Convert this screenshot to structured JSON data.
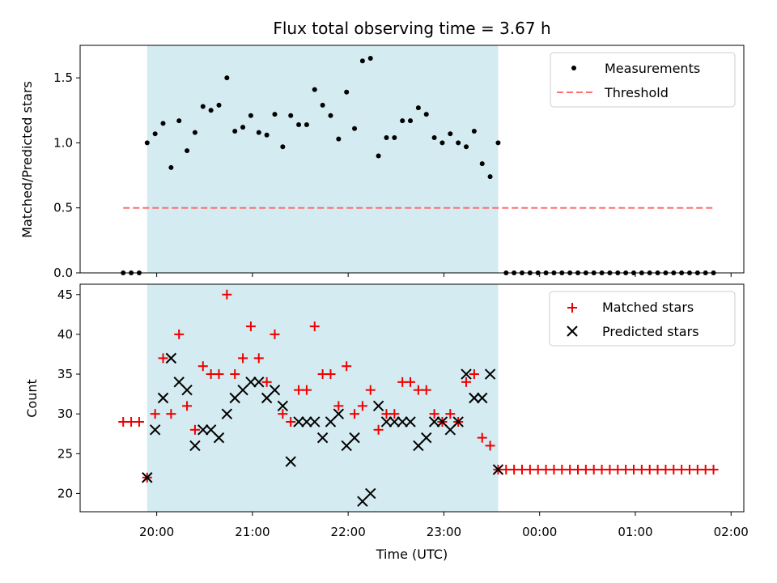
{
  "chart_data": {
    "title": "Flux total observing time = 3.67 h",
    "xlabel": "Time (UTC)",
    "x_ticks": [
      "20:00",
      "21:00",
      "22:00",
      "23:00",
      "00:00",
      "01:00",
      "02:00"
    ],
    "shaded_interval": {
      "start": "19:54",
      "end": "23:34",
      "color": "#d4ebf1"
    },
    "panels": [
      {
        "type": "scatter",
        "ylabel": "Matched/Predicted stars",
        "ylim": [
          0,
          1.75
        ],
        "y_ticks": [
          "0.0",
          "0.5",
          "1.0",
          "1.5"
        ],
        "legend_position": "top-right",
        "series": [
          {
            "name": "Measurements",
            "marker": "dot",
            "color": "#000000",
            "x": [
              "19:39",
              "19:44",
              "19:49",
              "19:54",
              "19:59",
              "20:04",
              "20:09",
              "20:14",
              "20:19",
              "20:24",
              "20:29",
              "20:34",
              "20:39",
              "20:44",
              "20:49",
              "20:54",
              "20:59",
              "21:04",
              "21:09",
              "21:14",
              "21:19",
              "21:24",
              "21:29",
              "21:34",
              "21:39",
              "21:44",
              "21:49",
              "21:54",
              "21:59",
              "22:04",
              "22:09",
              "22:14",
              "22:19",
              "22:24",
              "22:29",
              "22:34",
              "22:39",
              "22:44",
              "22:49",
              "22:54",
              "22:59",
              "23:04",
              "23:09",
              "23:14",
              "23:19",
              "23:24",
              "23:29",
              "23:34",
              "23:39",
              "23:44",
              "23:49",
              "23:54",
              "23:59",
              "00:04",
              "00:09",
              "00:14",
              "00:19",
              "00:24",
              "00:29",
              "00:34",
              "00:39",
              "00:44",
              "00:49",
              "00:54",
              "00:59",
              "01:04",
              "01:09",
              "01:14",
              "01:19",
              "01:24",
              "01:29",
              "01:34",
              "01:39",
              "01:44",
              "01:49"
            ],
            "y": [
              0,
              0,
              0,
              1.0,
              1.07,
              1.15,
              0.81,
              1.17,
              0.94,
              1.08,
              1.28,
              1.25,
              1.29,
              1.5,
              1.09,
              1.12,
              1.21,
              1.08,
              1.06,
              1.22,
              0.97,
              1.21,
              1.14,
              1.14,
              1.41,
              1.29,
              1.21,
              1.03,
              1.39,
              1.11,
              1.63,
              1.65,
              0.9,
              1.04,
              1.04,
              1.17,
              1.17,
              1.27,
              1.22,
              1.04,
              1.0,
              1.07,
              1.0,
              0.97,
              1.09,
              0.84,
              0.74,
              1.0,
              0,
              0,
              0,
              0,
              0,
              0,
              0,
              0,
              0,
              0,
              0,
              0,
              0,
              0,
              0,
              0,
              0,
              0,
              0,
              0,
              0,
              0,
              0,
              0,
              0,
              0,
              0
            ]
          },
          {
            "name": "Threshold",
            "type": "line",
            "style": "dashed",
            "color": "#ff7070",
            "x": [
              "19:39",
              "01:49"
            ],
            "y": [
              0.5,
              0.5
            ]
          }
        ]
      },
      {
        "type": "scatter",
        "ylabel": "Count",
        "ylim": [
          17.7,
          46.3
        ],
        "y_ticks": [
          "20",
          "25",
          "30",
          "35",
          "40",
          "45"
        ],
        "legend_position": "top-right",
        "series": [
          {
            "name": "Matched stars",
            "marker": "plus",
            "color": "#ee0000",
            "x": [
              "19:39",
              "19:44",
              "19:49",
              "19:54",
              "19:59",
              "20:04",
              "20:09",
              "20:14",
              "20:19",
              "20:24",
              "20:29",
              "20:34",
              "20:39",
              "20:44",
              "20:49",
              "20:54",
              "20:59",
              "21:04",
              "21:09",
              "21:14",
              "21:19",
              "21:24",
              "21:29",
              "21:34",
              "21:39",
              "21:44",
              "21:49",
              "21:54",
              "21:59",
              "22:04",
              "22:09",
              "22:14",
              "22:19",
              "22:24",
              "22:29",
              "22:34",
              "22:39",
              "22:44",
              "22:49",
              "22:54",
              "22:59",
              "23:04",
              "23:09",
              "23:14",
              "23:19",
              "23:24",
              "23:29",
              "23:34",
              "23:39",
              "23:44",
              "23:49",
              "23:54",
              "23:59",
              "00:04",
              "00:09",
              "00:14",
              "00:19",
              "00:24",
              "00:29",
              "00:34",
              "00:39",
              "00:44",
              "00:49",
              "00:54",
              "00:59",
              "01:04",
              "01:09",
              "01:14",
              "01:19",
              "01:24",
              "01:29",
              "01:34",
              "01:39",
              "01:44",
              "01:49"
            ],
            "y": [
              29,
              29,
              29,
              22,
              30,
              37,
              30,
              40,
              31,
              28,
              36,
              35,
              35,
              45,
              35,
              37,
              41,
              37,
              34,
              40,
              30,
              29,
              33,
              33,
              41,
              35,
              35,
              31,
              36,
              30,
              31,
              33,
              28,
              30,
              30,
              34,
              34,
              33,
              33,
              30,
              29,
              30,
              29,
              34,
              35,
              27,
              26,
              23,
              23,
              23,
              23,
              23,
              23,
              23,
              23,
              23,
              23,
              23,
              23,
              23,
              23,
              23,
              23,
              23,
              23,
              23,
              23,
              23,
              23,
              23,
              23,
              23,
              23,
              23,
              23
            ]
          },
          {
            "name": "Predicted stars",
            "marker": "x",
            "color": "#000000",
            "x": [
              "19:54",
              "19:59",
              "20:04",
              "20:09",
              "20:14",
              "20:19",
              "20:24",
              "20:29",
              "20:34",
              "20:39",
              "20:44",
              "20:49",
              "20:54",
              "20:59",
              "21:04",
              "21:09",
              "21:14",
              "21:19",
              "21:24",
              "21:29",
              "21:34",
              "21:39",
              "21:44",
              "21:49",
              "21:54",
              "21:59",
              "22:04",
              "22:09",
              "22:14",
              "22:19",
              "22:24",
              "22:29",
              "22:34",
              "22:39",
              "22:44",
              "22:49",
              "22:54",
              "22:59",
              "23:04",
              "23:09",
              "23:14",
              "23:19",
              "23:24",
              "23:29",
              "23:34"
            ],
            "y": [
              22,
              28,
              32,
              37,
              34,
              33,
              26,
              28,
              28,
              27,
              30,
              32,
              33,
              34,
              34,
              32,
              33,
              31,
              24,
              29,
              29,
              29,
              27,
              29,
              30,
              26,
              27,
              19,
              20,
              31,
              29,
              29,
              29,
              29,
              26,
              27,
              29,
              29,
              28,
              29,
              35,
              32,
              32,
              35,
              23
            ]
          }
        ]
      }
    ]
  }
}
